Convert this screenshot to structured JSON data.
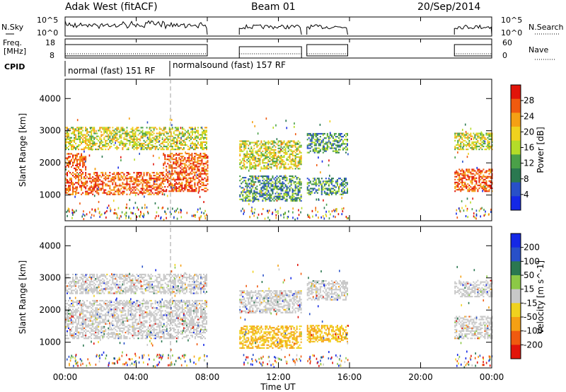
{
  "header": {
    "title": "Adak West (fitACF)",
    "beam": "Beam 01",
    "date": "20/Sep/2014"
  },
  "panels": {
    "nsky": {
      "label": "N.Sky",
      "left_ticks": [
        "10^5",
        "10^0"
      ],
      "right_ticks": [
        "10^5",
        "10^0"
      ],
      "right_label": "N.Search"
    },
    "freq": {
      "label_line1": "Freq.",
      "label_line2": "[MHz]",
      "left_ticks": [
        "18",
        "8"
      ],
      "right_ticks": [
        "60",
        "0"
      ],
      "right_label": "Nave"
    },
    "cpid": {
      "label": "CPID",
      "modes": [
        "normal (fast) 151 RF",
        "normalsound (fast) 157 RF"
      ]
    }
  },
  "chart_data": [
    {
      "type": "heatmap",
      "name": "power",
      "ylabel": "Slant Range [km]",
      "ylim": [
        200,
        4600
      ],
      "yticks": [
        "1000",
        "2000",
        "3000",
        "4000"
      ],
      "colorbar": {
        "label": "Power [dB]",
        "ticks": [
          "4",
          "8",
          "12",
          "16",
          "20",
          "24",
          "28"
        ],
        "colors": [
          "#1428e6",
          "#2850c8",
          "#2a7850",
          "#4aa048",
          "#b4dc28",
          "#f0d21e",
          "#f5a014",
          "#f05a0f",
          "#e1140a"
        ]
      },
      "echo_bands": [
        {
          "t0": 0.0,
          "t1": 1.2,
          "r0": 1000,
          "r1": 2300,
          "level": "strong"
        },
        {
          "t0": 1.2,
          "t1": 5.5,
          "r0": 1000,
          "r1": 1700,
          "level": "strong"
        },
        {
          "t0": 5.5,
          "t1": 8.0,
          "r0": 1100,
          "r1": 2300,
          "level": "strong"
        },
        {
          "t0": 0.0,
          "t1": 8.0,
          "r0": 2400,
          "r1": 3100,
          "level": "medium"
        },
        {
          "t0": 9.8,
          "t1": 13.3,
          "r0": 1800,
          "r1": 2700,
          "level": "medium"
        },
        {
          "t0": 9.8,
          "t1": 13.3,
          "r0": 800,
          "r1": 1600,
          "level": "weak"
        },
        {
          "t0": 13.6,
          "t1": 15.9,
          "r0": 1000,
          "r1": 1500,
          "level": "weak"
        },
        {
          "t0": 13.6,
          "t1": 15.9,
          "r0": 2300,
          "r1": 2900,
          "level": "weak"
        },
        {
          "t0": 21.9,
          "t1": 24.0,
          "r0": 1100,
          "r1": 1800,
          "level": "strong"
        },
        {
          "t0": 21.9,
          "t1": 24.0,
          "r0": 2400,
          "r1": 2900,
          "level": "medium"
        }
      ]
    },
    {
      "type": "heatmap",
      "name": "velocity",
      "ylabel": "Slant Range [km]",
      "ylim": [
        200,
        4600
      ],
      "yticks": [
        "1000",
        "2000",
        "3000",
        "4000"
      ],
      "colorbar": {
        "label": "Velocity [m s^-1]",
        "ticks": [
          "200",
          "100",
          "50",
          "15",
          "-15",
          "-50",
          "-100",
          "-200"
        ],
        "colors": [
          "#1428e6",
          "#2850c8",
          "#2a7850",
          "#8cc846",
          "#c8c8c8",
          "#f0d21e",
          "#f5a014",
          "#f05a0f",
          "#e1140a"
        ]
      },
      "echo_bands": [
        {
          "t0": 0.0,
          "t1": 8.0,
          "r0": 1100,
          "r1": 2300,
          "level": "grey"
        },
        {
          "t0": 0.0,
          "t1": 8.0,
          "r0": 2500,
          "r1": 3100,
          "level": "grey"
        },
        {
          "t0": 9.8,
          "t1": 13.3,
          "r0": 1900,
          "r1": 2600,
          "level": "grey"
        },
        {
          "t0": 9.8,
          "t1": 13.3,
          "r0": 800,
          "r1": 1500,
          "level": "orange"
        },
        {
          "t0": 13.6,
          "t1": 15.9,
          "r0": 1000,
          "r1": 1500,
          "level": "orange"
        },
        {
          "t0": 13.6,
          "t1": 15.9,
          "r0": 2300,
          "r1": 2900,
          "level": "grey"
        },
        {
          "t0": 21.9,
          "t1": 24.0,
          "r0": 1100,
          "r1": 1800,
          "level": "grey"
        },
        {
          "t0": 21.9,
          "t1": 24.0,
          "r0": 2400,
          "r1": 2900,
          "level": "grey"
        }
      ]
    }
  ],
  "xaxis": {
    "label": "Time UT",
    "ticks": [
      "00:00",
      "04:00",
      "08:00",
      "12:00",
      "16:00",
      "20:00",
      "00:00"
    ],
    "range_hours": [
      0,
      24
    ]
  },
  "data_segments_hours": [
    [
      0.0,
      8.0
    ],
    [
      9.8,
      13.3
    ],
    [
      13.6,
      15.9
    ],
    [
      21.9,
      24.0
    ]
  ]
}
